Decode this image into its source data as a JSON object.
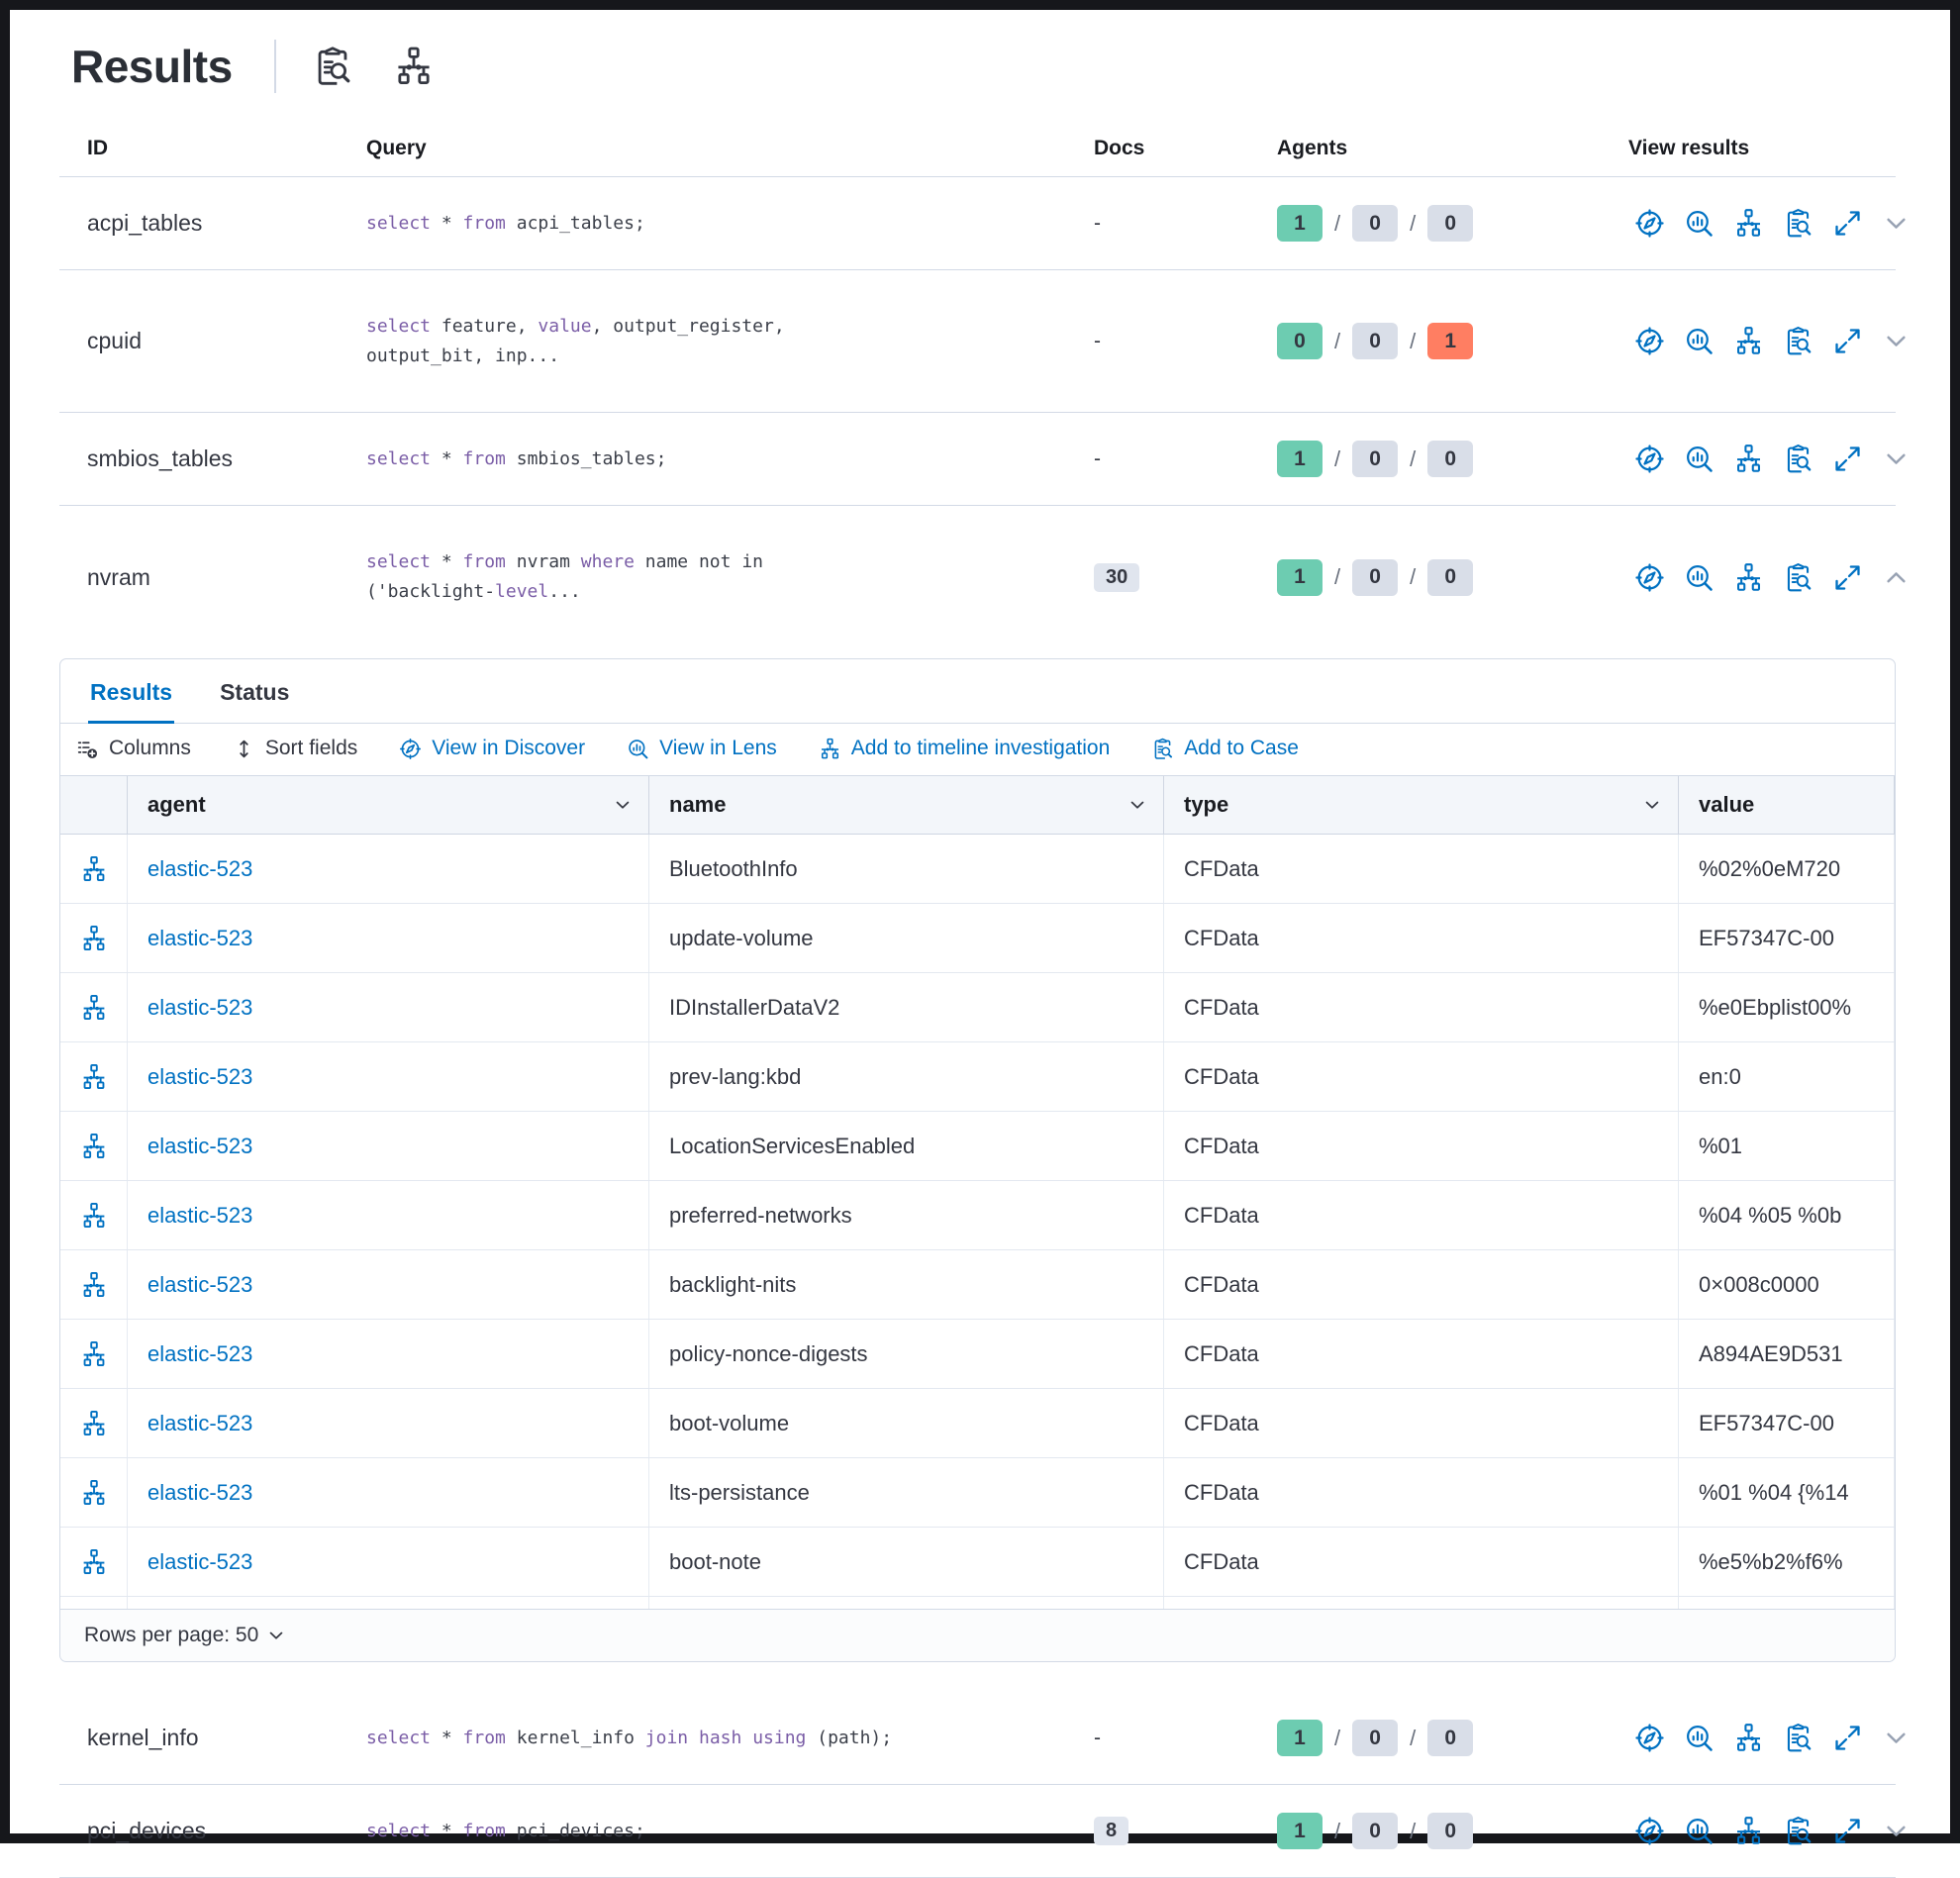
{
  "page": {
    "title": "Results"
  },
  "header": {
    "icons": [
      "case-icon",
      "timeline-icon"
    ]
  },
  "colors": {
    "accent_blue": "#0071c2",
    "keyword_purple": "#7b5ea7",
    "badge_green": "#6dccb1",
    "badge_gray": "#d9dee8",
    "badge_red": "#ff7e62",
    "border": "#d3dae6"
  },
  "main_table": {
    "columns": [
      "ID",
      "Query",
      "Docs",
      "Agents",
      "View results"
    ],
    "agents_separator": "/",
    "action_icons": [
      "discover-icon",
      "lens-icon",
      "timeline-icon",
      "case-icon",
      "expand-icon"
    ],
    "rows_top": [
      {
        "id": "acpi_tables",
        "query_segments": [
          {
            "t": "select",
            "k": true
          },
          {
            "t": " * "
          },
          {
            "t": "from",
            "k": true
          },
          {
            "t": " acpi_tables;"
          }
        ],
        "docs": "-",
        "docs_badge": false,
        "agents": {
          "success": "1",
          "pending": "0",
          "failed": "0",
          "failed_highlight": false
        },
        "expanded": false,
        "tall": false
      },
      {
        "id": "cpuid",
        "query_segments": [
          {
            "t": "select",
            "k": true
          },
          {
            "t": " feature, "
          },
          {
            "t": "value",
            "k": true
          },
          {
            "t": ", output_register,"
          },
          {
            "br": true
          },
          {
            "t": "output_bit, inp..."
          }
        ],
        "docs": "-",
        "docs_badge": false,
        "agents": {
          "success": "0",
          "pending": "0",
          "failed": "1",
          "failed_highlight": true
        },
        "expanded": false,
        "tall": true
      },
      {
        "id": "smbios_tables",
        "query_segments": [
          {
            "t": "select",
            "k": true
          },
          {
            "t": " * "
          },
          {
            "t": "from",
            "k": true
          },
          {
            "t": " smbios_tables;"
          }
        ],
        "docs": "-",
        "docs_badge": false,
        "agents": {
          "success": "1",
          "pending": "0",
          "failed": "0",
          "failed_highlight": false
        },
        "expanded": false,
        "tall": false
      },
      {
        "id": "nvram",
        "query_segments": [
          {
            "t": "select",
            "k": true
          },
          {
            "t": " * "
          },
          {
            "t": "from",
            "k": true
          },
          {
            "t": " nvram "
          },
          {
            "t": "where",
            "k": true
          },
          {
            "t": " name not in"
          },
          {
            "br": true
          },
          {
            "t": "('backlight-"
          },
          {
            "t": "level",
            "k": true
          },
          {
            "t": "..."
          }
        ],
        "docs": "30",
        "docs_badge": true,
        "agents": {
          "success": "1",
          "pending": "0",
          "failed": "0",
          "failed_highlight": false
        },
        "expanded": true,
        "tall": true
      }
    ],
    "rows_bottom": [
      {
        "id": "kernel_info",
        "query_segments": [
          {
            "t": "select",
            "k": true
          },
          {
            "t": " * "
          },
          {
            "t": "from",
            "k": true
          },
          {
            "t": " kernel_info "
          },
          {
            "t": "join",
            "k": true
          },
          {
            "t": " "
          },
          {
            "t": "hash",
            "k": true
          },
          {
            "t": " "
          },
          {
            "t": "using",
            "k": true
          },
          {
            "t": " (path);"
          }
        ],
        "docs": "-",
        "docs_badge": false,
        "agents": {
          "success": "1",
          "pending": "0",
          "failed": "0",
          "failed_highlight": false
        },
        "expanded": false,
        "tall": false
      },
      {
        "id": "pci_devices",
        "query_segments": [
          {
            "t": "select",
            "k": true
          },
          {
            "t": " * "
          },
          {
            "t": "from",
            "k": true
          },
          {
            "t": " pci_devices;"
          }
        ],
        "docs": "8",
        "docs_badge": true,
        "agents": {
          "success": "1",
          "pending": "0",
          "failed": "0",
          "failed_highlight": false
        },
        "expanded": false,
        "tall": false
      }
    ]
  },
  "panel": {
    "tabs": [
      "Results",
      "Status"
    ],
    "toolbar": [
      {
        "label": "Columns",
        "icon": "columns-icon",
        "style": "dark"
      },
      {
        "label": "Sort fields",
        "icon": "sort-icon",
        "style": "dark"
      },
      {
        "label": "View in Discover",
        "icon": "discover-icon",
        "style": "blue"
      },
      {
        "label": "View in Lens",
        "icon": "lens-icon",
        "style": "blue"
      },
      {
        "label": "Add to timeline investigation",
        "icon": "timeline-icon",
        "style": "blue"
      },
      {
        "label": "Add to Case",
        "icon": "case-icon",
        "style": "blue"
      }
    ],
    "grid": {
      "columns": [
        "agent",
        "name",
        "type",
        "value"
      ],
      "rows_per_page_label": "Rows per page: 50",
      "rows": [
        {
          "agent": "elastic-523",
          "name": "BluetoothInfo",
          "type": "CFData",
          "value": "%02%0eM720"
        },
        {
          "agent": "elastic-523",
          "name": "update-volume",
          "type": "CFData",
          "value": "EF57347C-00"
        },
        {
          "agent": "elastic-523",
          "name": "IDInstallerDataV2",
          "type": "CFData",
          "value": "%e0Ebplist00%"
        },
        {
          "agent": "elastic-523",
          "name": "prev-lang:kbd",
          "type": "CFData",
          "value": "en:0"
        },
        {
          "agent": "elastic-523",
          "name": "LocationServicesEnabled",
          "type": "CFData",
          "value": "%01"
        },
        {
          "agent": "elastic-523",
          "name": "preferred-networks",
          "type": "CFData",
          "value": "%04 %05 %0b"
        },
        {
          "agent": "elastic-523",
          "name": "backlight-nits",
          "type": "CFData",
          "value": "0×008c0000"
        },
        {
          "agent": "elastic-523",
          "name": "policy-nonce-digests",
          "type": "CFData",
          "value": "A894AE9D531"
        },
        {
          "agent": "elastic-523",
          "name": "boot-volume",
          "type": "CFData",
          "value": "EF57347C-00"
        },
        {
          "agent": "elastic-523",
          "name": "lts-persistance",
          "type": "CFData",
          "value": "%01 %04 {%14"
        },
        {
          "agent": "elastic-523",
          "name": "boot-note",
          "type": "CFData",
          "value": "%e5%b2%f6%"
        }
      ]
    }
  }
}
